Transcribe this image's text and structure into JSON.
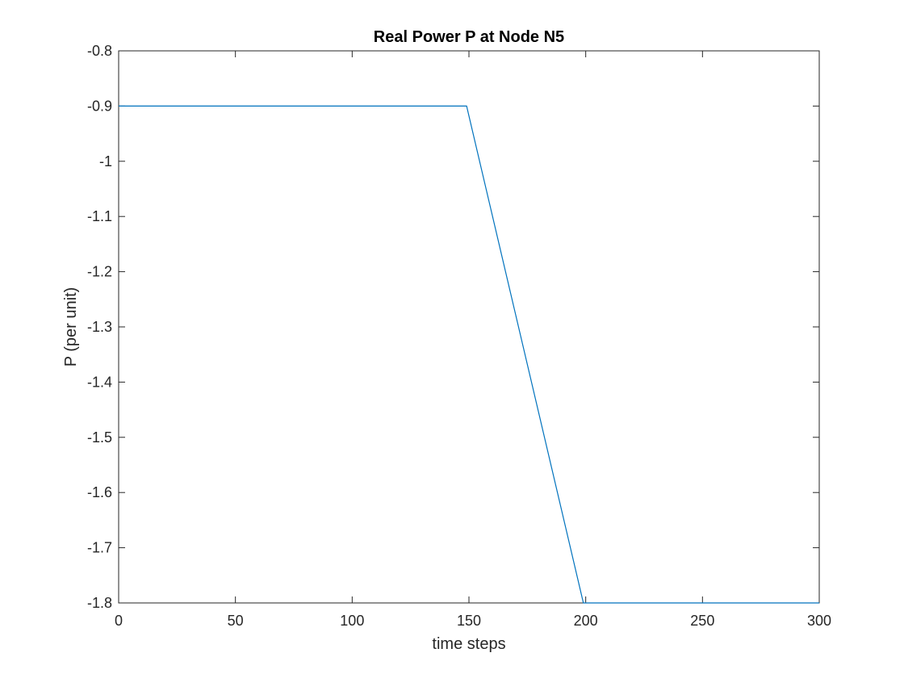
{
  "chart_data": {
    "type": "line",
    "title": "Real Power P at Node N5",
    "xlabel": "time steps",
    "ylabel": "P (per unit)",
    "xlim": [
      0,
      300
    ],
    "ylim": [
      -1.8,
      -0.8
    ],
    "x_ticks": [
      0,
      50,
      100,
      150,
      200,
      250,
      300
    ],
    "x_tick_labels": [
      "0",
      "50",
      "100",
      "150",
      "200",
      "250",
      "300"
    ],
    "y_ticks": [
      -0.8,
      -0.9,
      -1.0,
      -1.1,
      -1.2,
      -1.3,
      -1.4,
      -1.5,
      -1.6,
      -1.7,
      -1.8
    ],
    "y_tick_labels": [
      "-0.8",
      "-0.9",
      "-1",
      "-1.1",
      "-1.2",
      "-1.3",
      "-1.4",
      "-1.5",
      "-1.6",
      "-1.7",
      "-1.8"
    ],
    "grid": false,
    "series": [
      {
        "color": "#0072BD",
        "x": [
          0,
          149,
          199,
          300
        ],
        "y": [
          -0.9,
          -0.9,
          -1.8,
          -1.8
        ]
      }
    ]
  }
}
